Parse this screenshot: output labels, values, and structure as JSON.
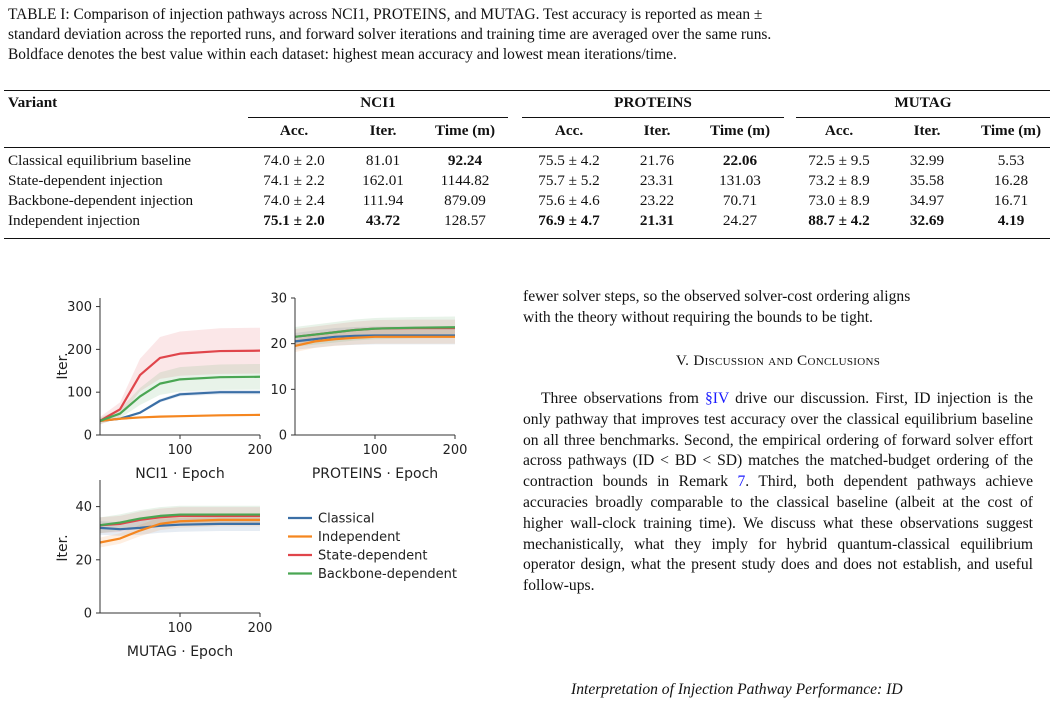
{
  "caption": {
    "line1": "TABLE I: Comparison of injection pathways across NCI1, PROTEINS, and MUTAG. Test accuracy is reported as mean ±",
    "line2": "standard deviation across the reported runs, and forward solver iterations and training time are averaged over the same runs.",
    "line3": "Boldface denotes the best value within each dataset: highest mean accuracy and lowest mean iterations/time."
  },
  "table": {
    "variant_header": "Variant",
    "groups": [
      "NCI1",
      "PROTEINS",
      "MUTAG"
    ],
    "subheaders": [
      "Acc.",
      "Iter.",
      "Time (m)"
    ],
    "rows": [
      {
        "name": "Classical equilibrium baseline",
        "cells": [
          "74.0 ± 2.0",
          "81.01",
          "92.24",
          "75.5 ± 4.2",
          "21.76",
          "22.06",
          "72.5 ± 9.5",
          "32.99",
          "5.53"
        ],
        "bold": [
          false,
          false,
          true,
          false,
          false,
          true,
          false,
          false,
          false
        ]
      },
      {
        "name": "State-dependent injection",
        "cells": [
          "74.1 ± 2.2",
          "162.01",
          "1144.82",
          "75.7 ± 5.2",
          "23.31",
          "131.03",
          "73.2 ± 8.9",
          "35.58",
          "16.28"
        ],
        "bold": [
          false,
          false,
          false,
          false,
          false,
          false,
          false,
          false,
          false
        ]
      },
      {
        "name": "Backbone-dependent injection",
        "cells": [
          "74.0 ± 2.4",
          "111.94",
          "879.09",
          "75.6 ± 4.6",
          "23.22",
          "70.71",
          "73.0 ± 8.9",
          "34.97",
          "16.71"
        ],
        "bold": [
          false,
          false,
          false,
          false,
          false,
          false,
          false,
          false,
          false
        ]
      },
      {
        "name": "Independent injection",
        "cells": [
          "75.1 ± 2.0",
          "43.72",
          "128.57",
          "76.9 ± 4.7",
          "21.31",
          "24.27",
          "88.7 ± 4.2",
          "32.69",
          "4.19"
        ],
        "bold": [
          true,
          true,
          false,
          true,
          true,
          false,
          true,
          true,
          true
        ]
      }
    ]
  },
  "figure": {
    "ylabel": "Iter.",
    "panels": [
      {
        "xlabel": "NCI1 · Epoch",
        "yticks": [
          "0",
          "100",
          "200",
          "300"
        ],
        "xticks": [
          "100",
          "200"
        ]
      },
      {
        "xlabel": "PROTEINS · Epoch",
        "yticks": [
          "0",
          "10",
          "20",
          "30"
        ],
        "xticks": [
          "100",
          "200"
        ]
      },
      {
        "xlabel": "MUTAG · Epoch",
        "yticks": [
          "0",
          "20",
          "40"
        ],
        "xticks": [
          "100",
          "200"
        ]
      }
    ],
    "legend": [
      "Classical",
      "Independent",
      "State-dependent",
      "Backbone-dependent"
    ]
  },
  "chart_data": [
    {
      "type": "line",
      "title": "",
      "xlabel": "NCI1 · Epoch",
      "ylabel": "Iter.",
      "xlim": [
        0,
        200
      ],
      "ylim": [
        0,
        320
      ],
      "legend_position": "right of MUTAG panel",
      "x": [
        0,
        25,
        50,
        75,
        100,
        150,
        200
      ],
      "series": [
        {
          "name": "Classical",
          "color": "#3b6fa6",
          "values": [
            33,
            38,
            52,
            80,
            95,
            100,
            100
          ]
        },
        {
          "name": "Independent",
          "color": "#f5861f",
          "values": [
            33,
            38,
            41,
            43,
            44,
            46,
            47
          ]
        },
        {
          "name": "State-dependent",
          "color": "#e0454b",
          "values": [
            33,
            60,
            140,
            180,
            190,
            196,
            197
          ]
        },
        {
          "name": "Backbone-dependent",
          "color": "#4aa653",
          "values": [
            33,
            50,
            90,
            120,
            130,
            135,
            136
          ]
        }
      ]
    },
    {
      "type": "line",
      "title": "",
      "xlabel": "PROTEINS · Epoch",
      "ylabel": "",
      "xlim": [
        0,
        200
      ],
      "ylim": [
        0,
        30
      ],
      "x": [
        0,
        25,
        50,
        75,
        100,
        150,
        200
      ],
      "series": [
        {
          "name": "Classical",
          "color": "#3b6fa6",
          "values": [
            20.5,
            21,
            21.5,
            21.7,
            21.8,
            21.8,
            21.8
          ]
        },
        {
          "name": "Independent",
          "color": "#f5861f",
          "values": [
            19.5,
            20.5,
            21,
            21.3,
            21.5,
            21.5,
            21.5
          ]
        },
        {
          "name": "State-dependent",
          "color": "#e0454b",
          "values": [
            21.5,
            22,
            22.5,
            23,
            23.3,
            23.4,
            23.4
          ]
        },
        {
          "name": "Backbone-dependent",
          "color": "#4aa653",
          "values": [
            21.5,
            22,
            22.5,
            23,
            23.3,
            23.5,
            23.6
          ]
        }
      ]
    },
    {
      "type": "line",
      "title": "",
      "xlabel": "MUTAG · Epoch",
      "ylabel": "Iter.",
      "xlim": [
        0,
        200
      ],
      "ylim": [
        0,
        50
      ],
      "x": [
        0,
        25,
        50,
        75,
        100,
        150,
        200
      ],
      "series": [
        {
          "name": "Classical",
          "color": "#3b6fa6",
          "values": [
            32,
            31.5,
            32,
            32.8,
            33.2,
            33.5,
            33.5
          ]
        },
        {
          "name": "Independent",
          "color": "#f5861f",
          "values": [
            26.5,
            28,
            31,
            33.5,
            34.5,
            35,
            35
          ]
        },
        {
          "name": "State-dependent",
          "color": "#e0454b",
          "values": [
            33,
            33.5,
            35,
            36,
            36.5,
            36.5,
            36.5
          ]
        },
        {
          "name": "Backbone-dependent",
          "color": "#4aa653",
          "values": [
            33,
            34,
            35.5,
            36.5,
            37,
            37,
            37
          ]
        }
      ]
    }
  ],
  "text": {
    "para0_l1": "fewer solver steps, so the observed solver-cost ordering aligns",
    "para0_l2": "with the theory without requiring the bounds to be tight.",
    "section_title": "V. Discussion and Conclusions",
    "p1": "Three observations from ",
    "ref_iv": "§IV",
    "p1b": " drive our discussion. First, ID injection is the only pathway that improves test accuracy over the classical equilibrium baseline on all three benchmarks. Second, the empirical ordering of forward solver effort across pathways (ID < BD < SD) matches the matched-budget ordering of the contraction bounds in Remark ",
    "ref_7": "7",
    "p1c": ". Third, both dependent pathways achieve accuracies broadly comparable to the classical baseline (albeit at the cost of higher wall-clock training time). We discuss what these observations suggest mechanistically, what they imply for hybrid quantum-classical equilibrium operator design, what the present study does and does not establish, and useful follow-ups.",
    "p2": "Interpretation of Injection Pathway Performance: ID"
  }
}
